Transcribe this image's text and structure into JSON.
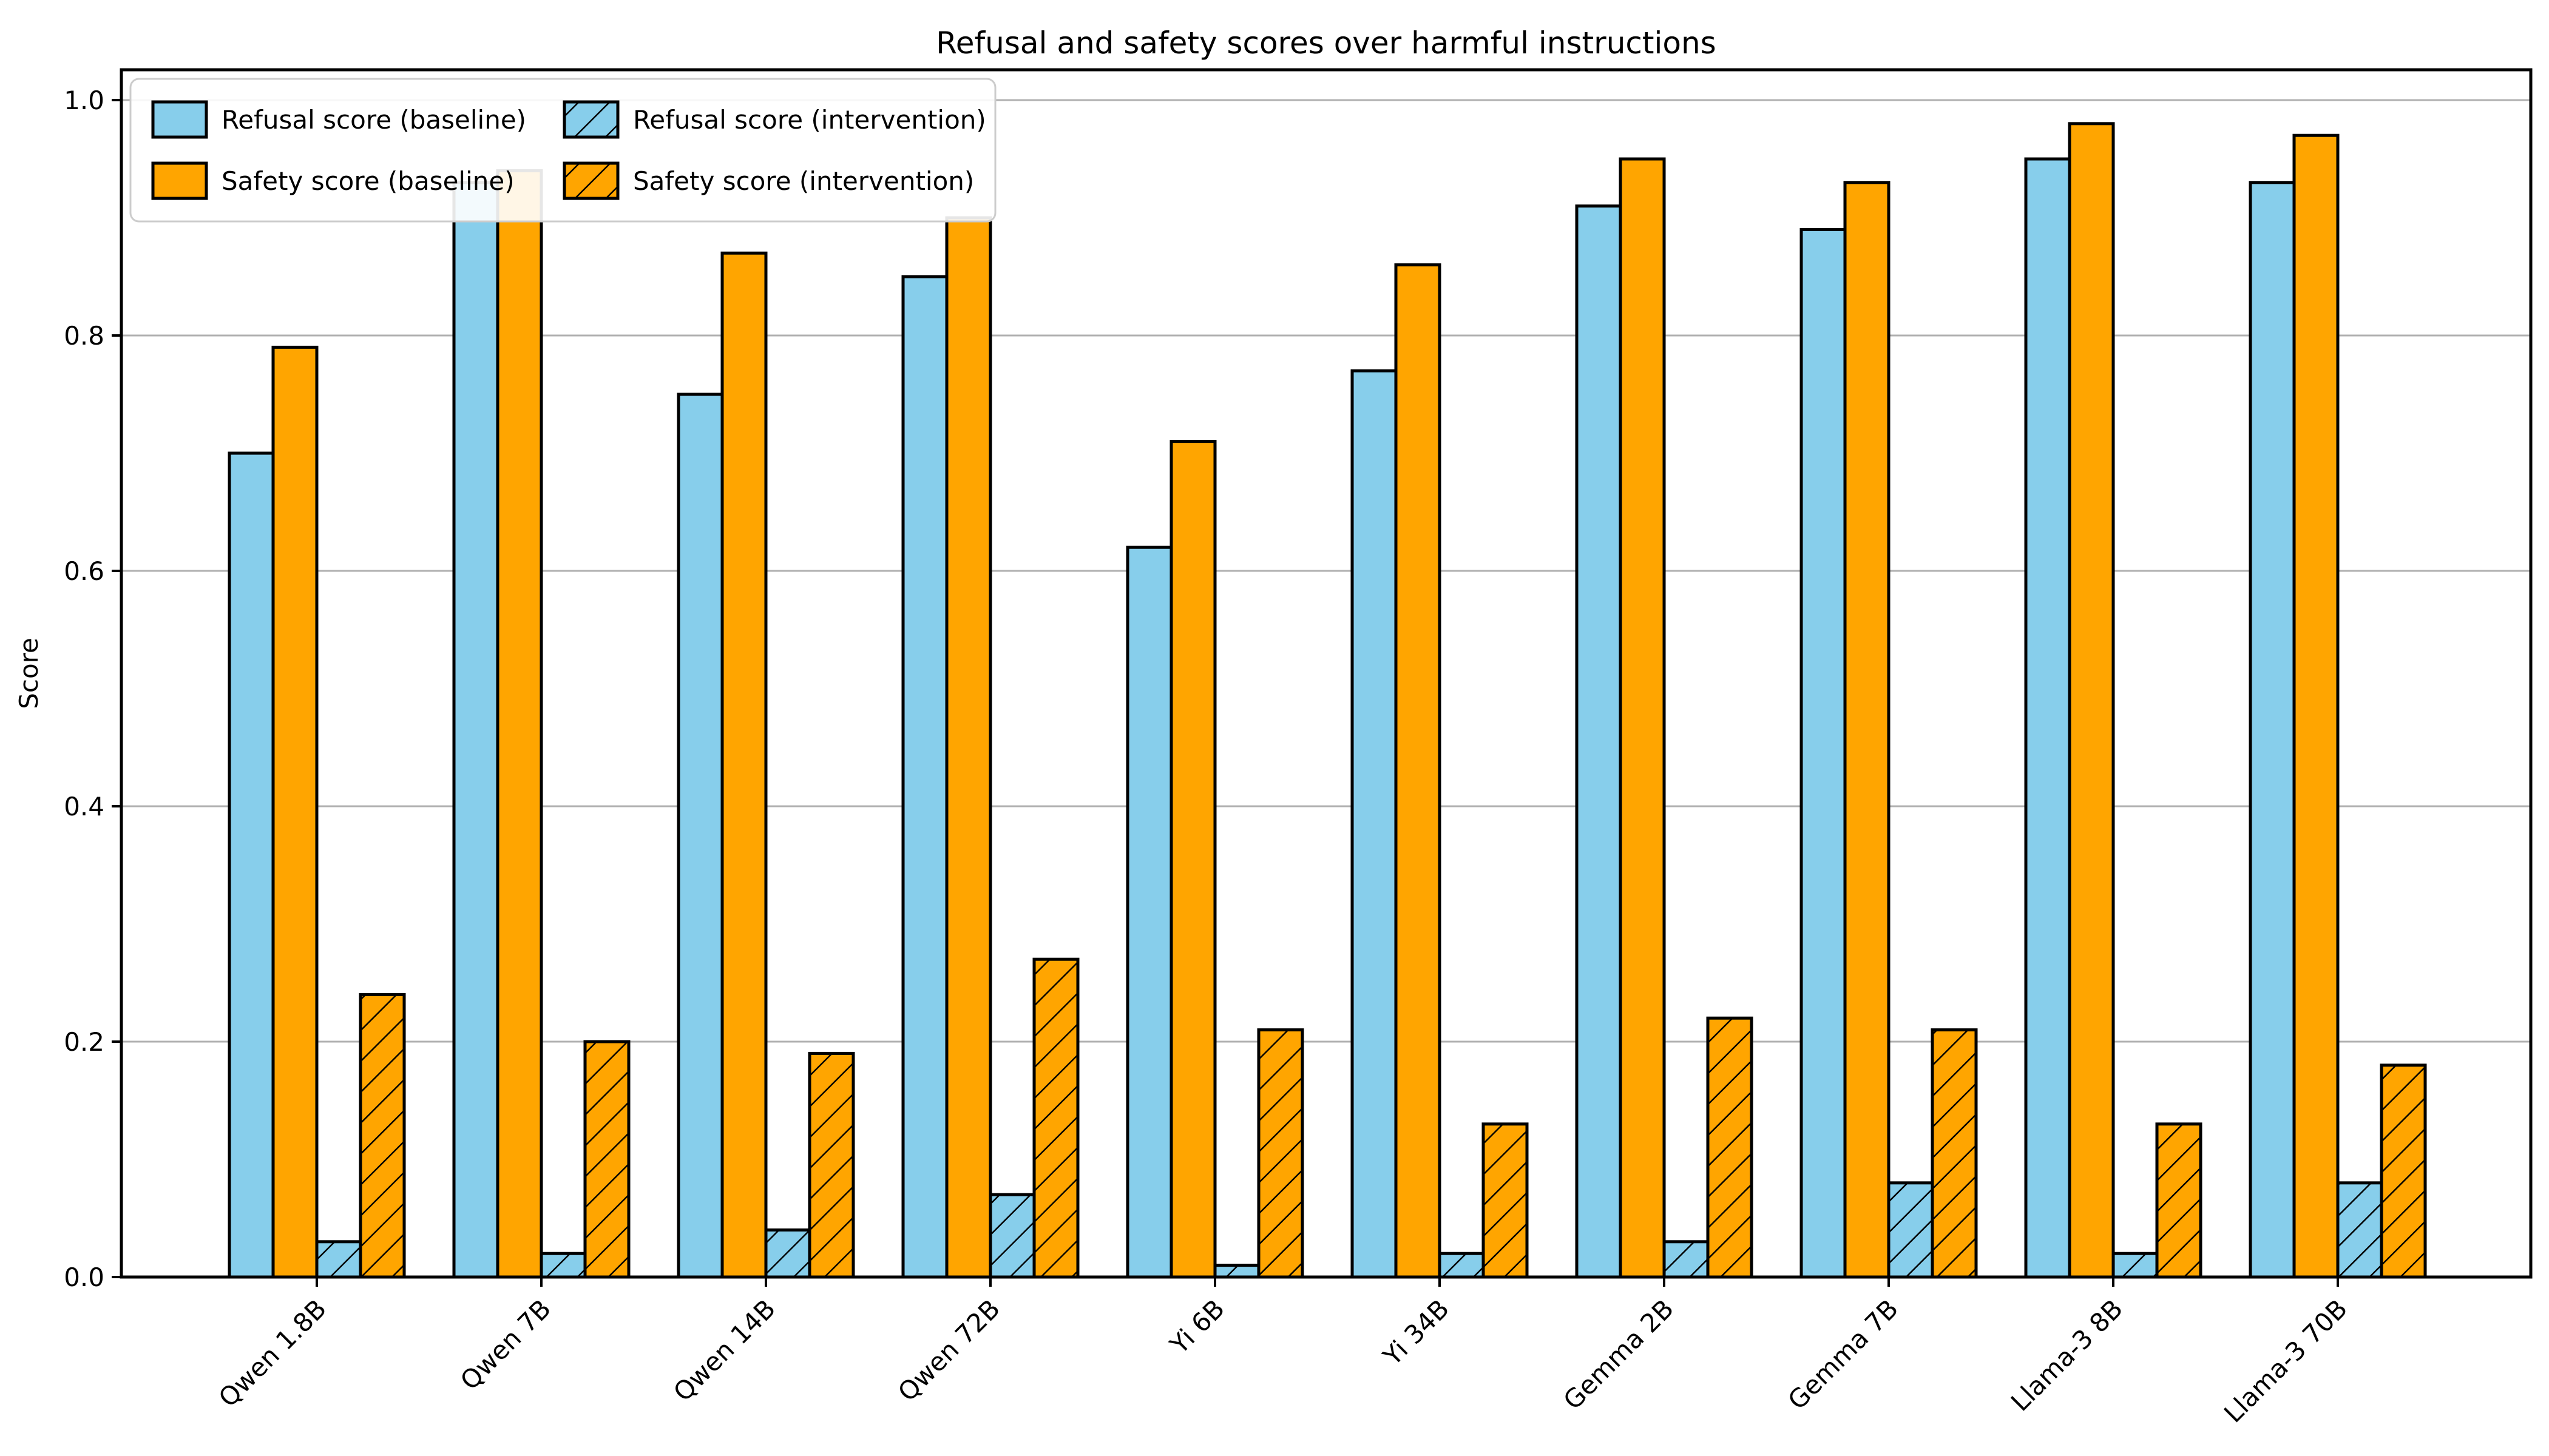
{
  "chart_data": {
    "type": "bar",
    "title": "Refusal and safety scores over harmful instructions",
    "ylabel": "Score",
    "xlabel": "",
    "categories": [
      "Qwen 1.8B",
      "Qwen 7B",
      "Qwen 14B",
      "Qwen 72B",
      "Yi 6B",
      "Yi 34B",
      "Gemma 2B",
      "Gemma 7B",
      "Llama-3 8B",
      "Llama-3 70B"
    ],
    "series": [
      {
        "name": "Refusal score (baseline)",
        "color": "#87CEEB",
        "hatch": false,
        "values": [
          0.7,
          0.93,
          0.75,
          0.85,
          0.62,
          0.77,
          0.91,
          0.89,
          0.95,
          0.93
        ]
      },
      {
        "name": "Safety score (baseline)",
        "color": "#FFA500",
        "hatch": false,
        "values": [
          0.79,
          0.94,
          0.87,
          0.9,
          0.71,
          0.86,
          0.95,
          0.93,
          0.98,
          0.97
        ]
      },
      {
        "name": "Refusal score (intervention)",
        "color": "#87CEEB",
        "hatch": true,
        "values": [
          0.03,
          0.02,
          0.04,
          0.07,
          0.01,
          0.02,
          0.03,
          0.08,
          0.02,
          0.08
        ]
      },
      {
        "name": "Safety score (intervention)",
        "color": "#FFA500",
        "hatch": true,
        "values": [
          0.24,
          0.2,
          0.19,
          0.27,
          0.21,
          0.13,
          0.22,
          0.21,
          0.13,
          0.18
        ]
      }
    ],
    "ylim": [
      0.0,
      1.026
    ],
    "yticks": [
      0.0,
      0.2,
      0.4,
      0.6,
      0.8,
      1.0
    ],
    "ytick_labels": [
      "0.0",
      "0.2",
      "0.4",
      "0.6",
      "0.8",
      "1.0"
    ],
    "xtick_rotation_deg": 45,
    "grid": "horizontal",
    "legend_position": "upper-left",
    "legend_columns": 2,
    "colors": {
      "background": "#ffffff",
      "grid": "#b0b0b0",
      "edge": "#000000",
      "text": "#000000",
      "legend_border": "#cccccc",
      "legend_background": "#ffffff"
    }
  }
}
